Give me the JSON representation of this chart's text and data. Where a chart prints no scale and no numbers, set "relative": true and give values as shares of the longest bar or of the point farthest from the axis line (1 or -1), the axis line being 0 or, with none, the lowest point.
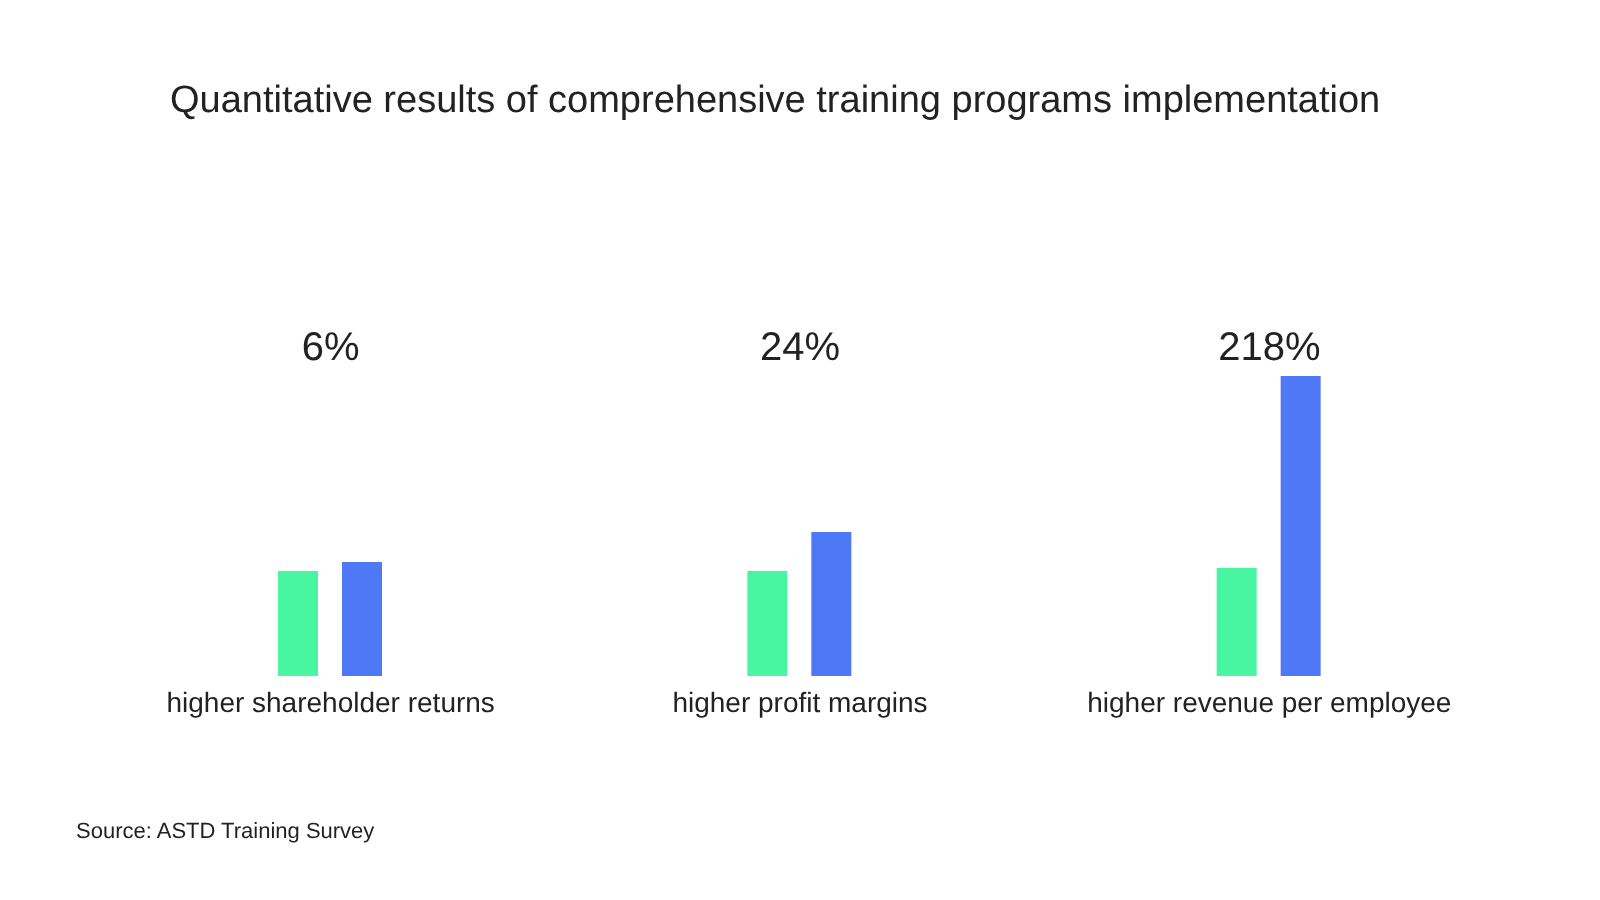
{
  "chart_data": {
    "type": "bar",
    "title": "Quantitative results of comprehensive training programs implementation",
    "relative": true,
    "categories": [
      "higher shareholder returns",
      "higher profit margins",
      "higher revenue per employee"
    ],
    "series": [
      {
        "color": "#48f5a0",
        "values": [
          0.35,
          0.35,
          0.36
        ]
      },
      {
        "color": "#4f78f7",
        "values": [
          0.38,
          0.48,
          1
        ]
      }
    ],
    "annotations": [
      "6%",
      "24%",
      "218%",
      "Source: ASTD Training Survey"
    ],
    "grid": false,
    "legend": false
  }
}
